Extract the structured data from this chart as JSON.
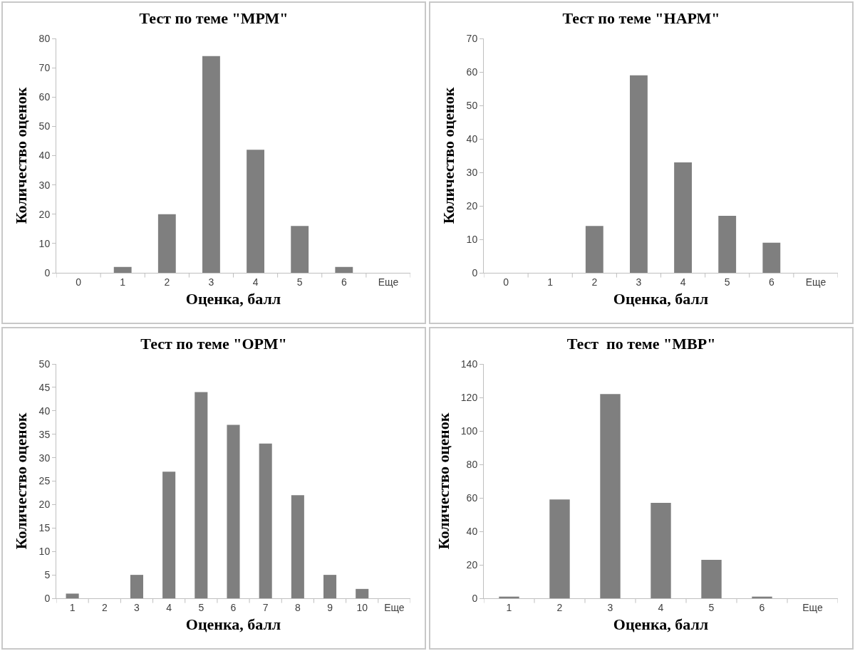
{
  "chart_data": [
    {
      "type": "bar",
      "title": "Тест по теме \"МРМ\"",
      "xlabel": "Оценка, балл",
      "ylabel": "Количество оценок",
      "categories": [
        "0",
        "1",
        "2",
        "3",
        "4",
        "5",
        "6",
        "Еще"
      ],
      "values": [
        0,
        2,
        20,
        74,
        42,
        16,
        2,
        0
      ],
      "color": "#7f7f7f",
      "ylim": [
        0,
        80
      ],
      "yticks": [
        0,
        10,
        20,
        30,
        40,
        50,
        60,
        70,
        80
      ]
    },
    {
      "type": "bar",
      "title": "Тест по теме \"НАРМ\"",
      "xlabel": "Оценка, балл",
      "ylabel": "Количество оценок",
      "categories": [
        "0",
        "1",
        "2",
        "3",
        "4",
        "5",
        "6",
        "Еще"
      ],
      "values": [
        0,
        0,
        14,
        59,
        33,
        17,
        9,
        0
      ],
      "color": "#7f7f7f",
      "ylim": [
        0,
        70
      ],
      "yticks": [
        0,
        10,
        20,
        30,
        40,
        50,
        60,
        70
      ]
    },
    {
      "type": "bar",
      "title": "Тест по теме \"ОРМ\"",
      "xlabel": "Оценка, балл",
      "ylabel": "Количество оценок",
      "categories": [
        "1",
        "2",
        "3",
        "4",
        "5",
        "6",
        "7",
        "8",
        "9",
        "10",
        "Еще"
      ],
      "values": [
        1,
        0,
        5,
        27,
        44,
        37,
        33,
        22,
        5,
        2,
        0
      ],
      "color": "#7f7f7f",
      "ylim": [
        0,
        50
      ],
      "yticks": [
        0,
        5,
        10,
        15,
        20,
        25,
        30,
        35,
        40,
        45,
        50
      ]
    },
    {
      "type": "bar",
      "title": "Тест  по теме \"МВР\"",
      "xlabel": "Оценка, балл",
      "ylabel": "Количество оценок",
      "categories": [
        "1",
        "2",
        "3",
        "4",
        "5",
        "6",
        "Еще"
      ],
      "values": [
        1,
        59,
        122,
        57,
        23,
        1,
        0
      ],
      "color": "#7f7f7f",
      "ylim": [
        0,
        140
      ],
      "yticks": [
        0,
        20,
        40,
        60,
        80,
        100,
        120,
        140
      ]
    }
  ]
}
